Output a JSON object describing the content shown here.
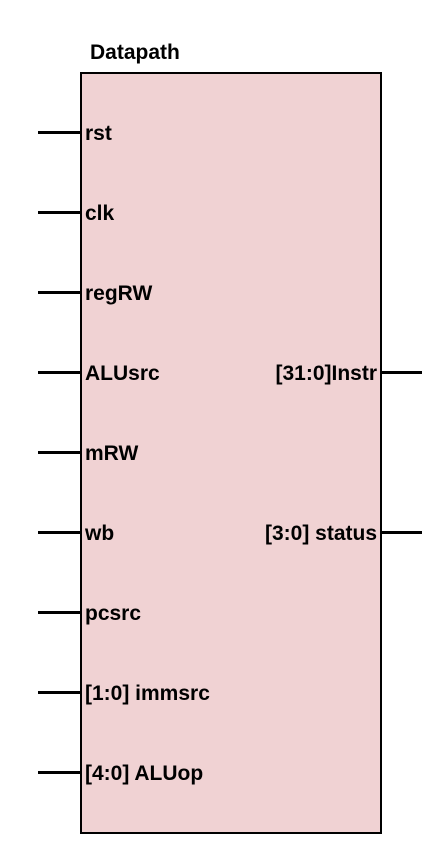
{
  "diagram": {
    "title": "Datapath",
    "block_fill": "#f0d2d3",
    "inputs": [
      {
        "id": "rst",
        "label": "rst"
      },
      {
        "id": "clk",
        "label": "clk"
      },
      {
        "id": "regrw",
        "label": "regRW"
      },
      {
        "id": "alusrc",
        "label": "ALUsrc"
      },
      {
        "id": "mrw",
        "label": "mRW"
      },
      {
        "id": "wb",
        "label": "wb"
      },
      {
        "id": "pcsrc",
        "label": "pcsrc"
      },
      {
        "id": "immsrc",
        "label": "[1:0] immsrc"
      },
      {
        "id": "aluop",
        "label": "[4:0] ALUop"
      }
    ],
    "outputs": [
      {
        "id": "instr",
        "label": "[31:0]Instr"
      },
      {
        "id": "status",
        "label": "[3:0] status"
      }
    ]
  }
}
